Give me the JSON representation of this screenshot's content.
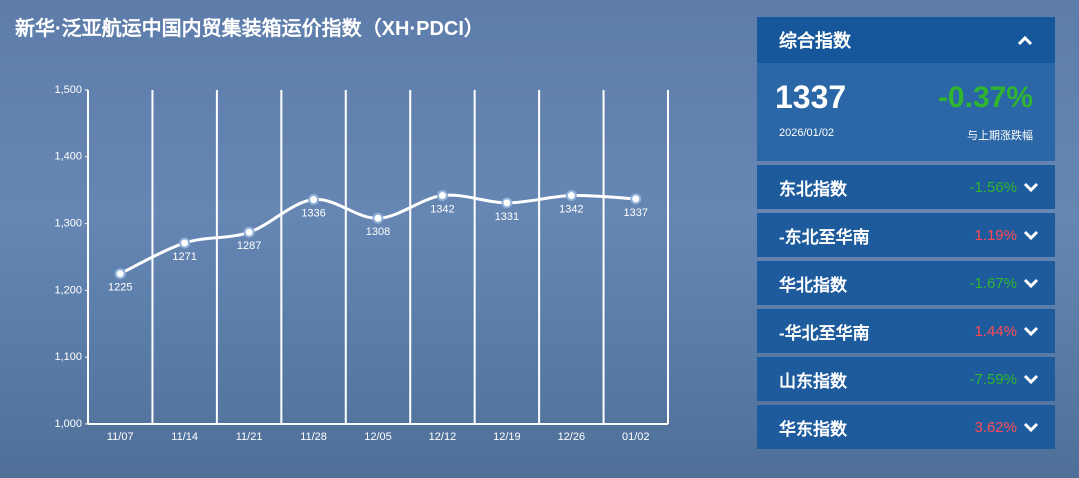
{
  "chart_data": {
    "type": "line",
    "title": "新华·泛亚航运中国内贸集装箱运价指数（XH·PDCI）",
    "categories": [
      "11/07",
      "11/14",
      "11/21",
      "11/28",
      "12/05",
      "12/12",
      "12/19",
      "12/26",
      "01/02"
    ],
    "values": [
      1225,
      1271,
      1287,
      1336,
      1308,
      1342,
      1331,
      1342,
      1337
    ],
    "color": "#ffffff",
    "ylim": [
      1000,
      1500
    ],
    "yticks": [
      {
        "value": 1000,
        "label": "1,000"
      },
      {
        "value": 1100,
        "label": "1,100"
      },
      {
        "value": 1200,
        "label": "1,200"
      },
      {
        "value": 1300,
        "label": "1,300"
      },
      {
        "value": 1400,
        "label": "1,400"
      },
      {
        "value": 1500,
        "label": "1,500"
      }
    ],
    "grid": true
  },
  "panel": {
    "header": "综合指数",
    "value": "1337",
    "date": "2026/01/02",
    "change": "-0.37%",
    "change_label": "与上期涨跌幅",
    "items": [
      {
        "name": "东北指数",
        "change": "-1.56%"
      },
      {
        "name": "-东北至华南",
        "change": "1.19%"
      },
      {
        "name": "华北指数",
        "change": "-1.67%"
      },
      {
        "name": "-华北至华南",
        "change": "1.44%"
      },
      {
        "name": "山东指数",
        "change": "-7.59%"
      },
      {
        "name": "华东指数",
        "change": "3.62%"
      }
    ]
  }
}
